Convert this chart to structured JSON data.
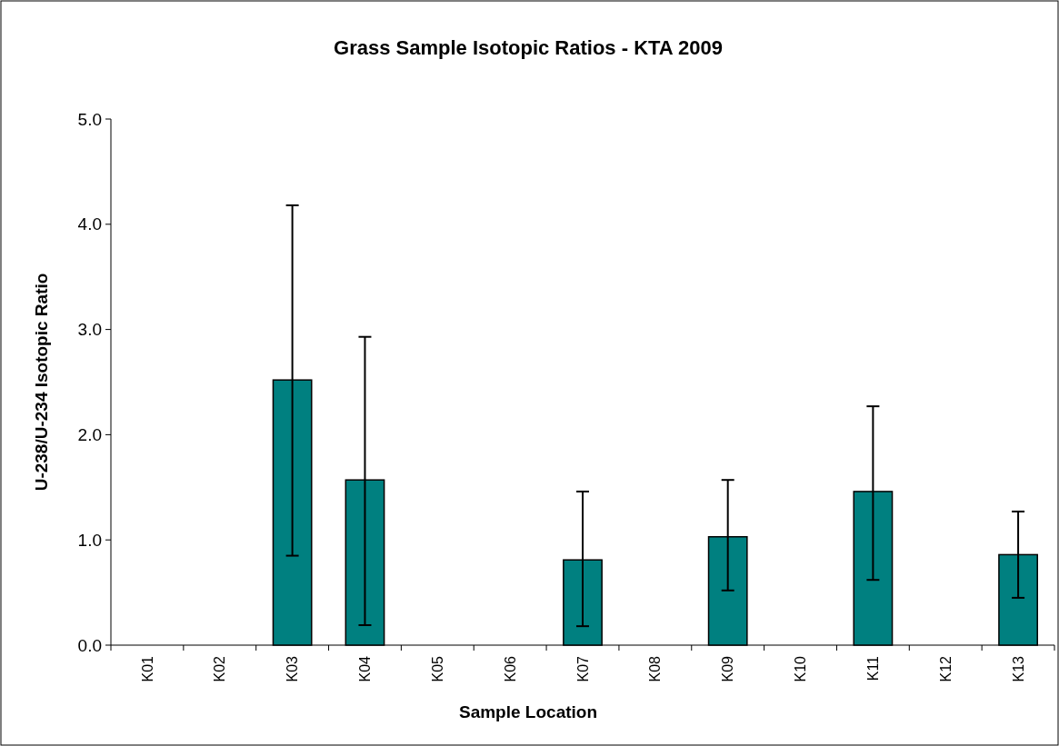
{
  "chart_data": {
    "type": "bar",
    "title": "Grass Sample Isotopic Ratios - KTA 2009",
    "xlabel": "Sample Location",
    "ylabel": "U-238/U-234 Isotopic Ratio",
    "categories": [
      "K01",
      "K02",
      "K03",
      "K04",
      "K05",
      "K06",
      "K07",
      "K08",
      "K09",
      "K10",
      "K11",
      "K12",
      "K13"
    ],
    "values": [
      null,
      null,
      2.52,
      1.57,
      null,
      null,
      0.81,
      null,
      1.03,
      null,
      1.46,
      null,
      0.86
    ],
    "errors": [
      null,
      null,
      [
        0.85,
        4.18
      ],
      [
        0.19,
        2.93
      ],
      null,
      null,
      [
        0.18,
        1.46
      ],
      null,
      [
        0.52,
        1.57
      ],
      null,
      [
        0.62,
        2.27
      ],
      null,
      [
        0.45,
        1.27
      ]
    ],
    "color": "#008080",
    "ylim": [
      0,
      5
    ],
    "yticks": [
      {
        "value": 0,
        "label": "0.0"
      },
      {
        "value": 1,
        "label": "1.0"
      },
      {
        "value": 2,
        "label": "2.0"
      },
      {
        "value": 3,
        "label": "3.0"
      },
      {
        "value": 4,
        "label": "4.0"
      },
      {
        "value": 5,
        "label": "5.0"
      }
    ]
  }
}
